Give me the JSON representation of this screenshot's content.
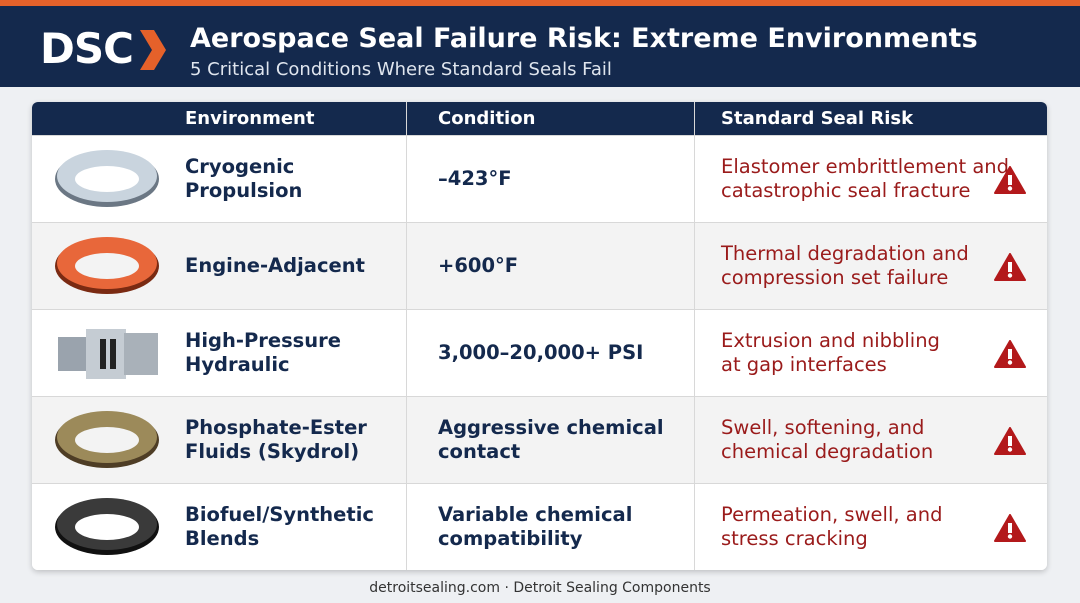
{
  "header": {
    "logo": "DSC",
    "title": "Aerospace Seal Failure Risk: Extreme Environments",
    "subtitle": "5 Critical Conditions Where Standard Seals Fail"
  },
  "table": {
    "columns": [
      "Environment",
      "Condition",
      "Standard Seal Risk"
    ],
    "rows": [
      [
        "Cryogenic\nPropulsion",
        "–423°F",
        "Elastomer embrittlement and\ncatastrophic seal fracture"
      ],
      [
        "Engine-Adjacent",
        "+600°F",
        "Thermal degradation and\ncompression set failure"
      ],
      [
        "High-Pressure\nHydraulic",
        "3,000–20,000+ PSI",
        "Extrusion and nibbling\nat gap interfaces"
      ],
      [
        "Phosphate-Ester\nFluids (Skydrol)",
        "Aggressive chemical\ncontact",
        "Swell, softening, and\nchemical degradation"
      ],
      [
        "Biofuel/Synthetic\nBlends",
        "Variable chemical\ncompatibility",
        "Permeation, swell, and\nstress cracking"
      ]
    ]
  },
  "footer": "detroitsealing.com · Detroit Sealing Components"
}
